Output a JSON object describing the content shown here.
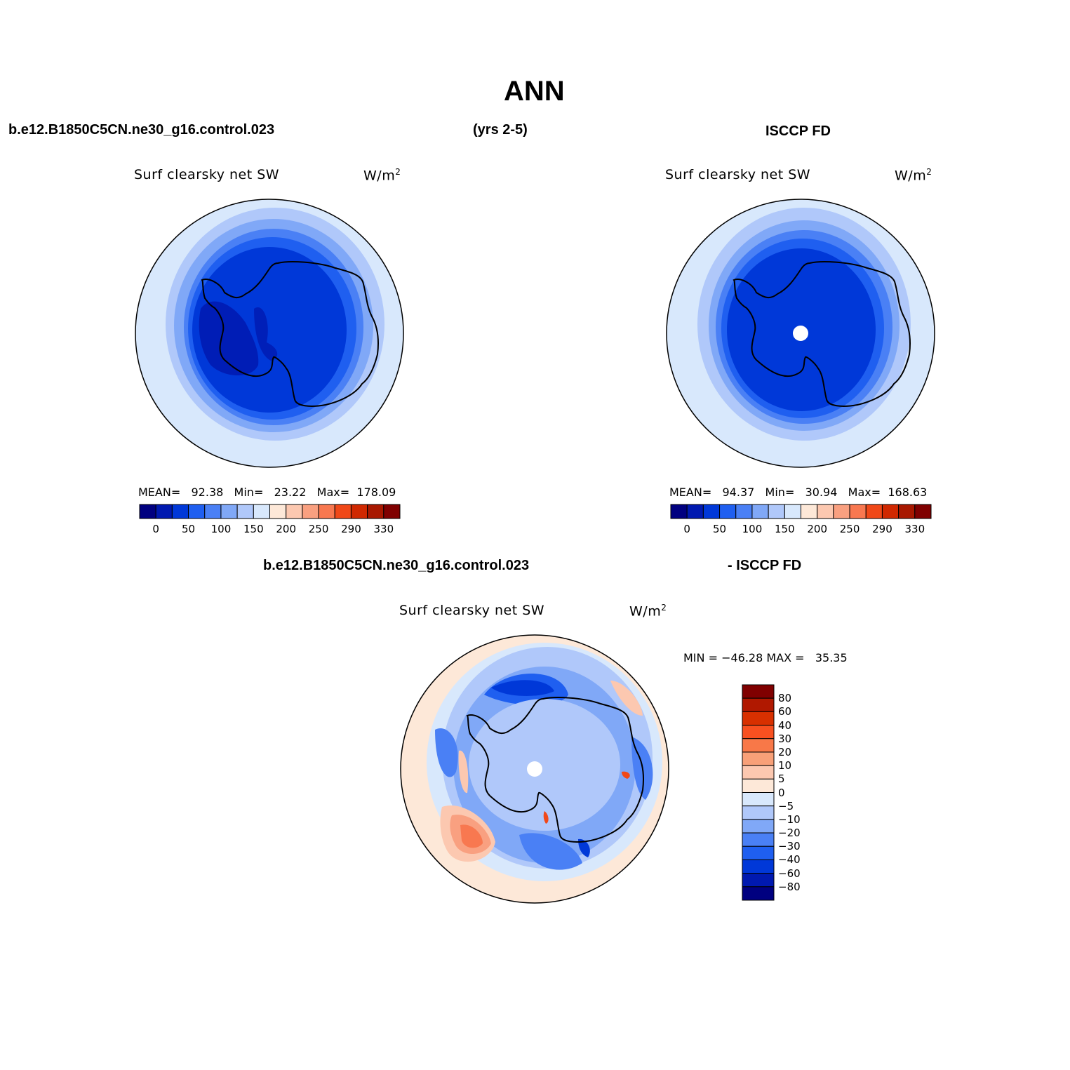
{
  "title": "ANN",
  "top_left_header": "b.e12.B1850C5CN.ne30_g16.control.023",
  "top_mid_header": "(yrs 2-5)",
  "top_right_header": "ISCCP FD",
  "bottom_left_header": "b.e12.B1850C5CN.ne30_g16.control.023",
  "bottom_right_header": "- ISCCP FD",
  "panels": {
    "model": {
      "variable": "Surf clearsky net SW",
      "units": "W/m",
      "units_sup": "2",
      "stats": "MEAN=   92.38   Min=   23.22   Max=  178.09",
      "ticks": [
        "0",
        "50",
        "100",
        "150",
        "200",
        "250",
        "290",
        "330"
      ]
    },
    "obs": {
      "variable": "Surf clearsky net SW",
      "units": "W/m",
      "units_sup": "2",
      "stats": "MEAN=   94.37   Min=   30.94   Max=  168.63",
      "ticks": [
        "0",
        "50",
        "100",
        "150",
        "200",
        "250",
        "290",
        "330"
      ]
    },
    "diff": {
      "variable": "Surf clearsky net SW",
      "units": "W/m",
      "units_sup": "2",
      "stats": "MIN = −46.28 MAX =   35.35",
      "ticks": [
        "80",
        "60",
        "40",
        "30",
        "20",
        "10",
        "5",
        "0",
        "−5",
        "−10",
        "−20",
        "−30",
        "−40",
        "−60",
        "−80"
      ]
    }
  },
  "colors": {
    "abs_scale": [
      "#000080",
      "#0019b0",
      "#0038d8",
      "#1f5ff0",
      "#4a80f5",
      "#80a8f7",
      "#b0c8fa",
      "#d8e8fc",
      "#fde8d8",
      "#fcc8b0",
      "#f9a080",
      "#f87850",
      "#f04818",
      "#d02800",
      "#a81800",
      "#800000"
    ],
    "diff_scale": [
      "#800000",
      "#b01800",
      "#d83000",
      "#f85020",
      "#f87848",
      "#f8a078",
      "#fcc8b0",
      "#fde8d8",
      "#d8e8fc",
      "#b0c8fa",
      "#80a8f7",
      "#4a80f5",
      "#1f5ff0",
      "#0038d8",
      "#0019b0",
      "#000080"
    ]
  }
}
